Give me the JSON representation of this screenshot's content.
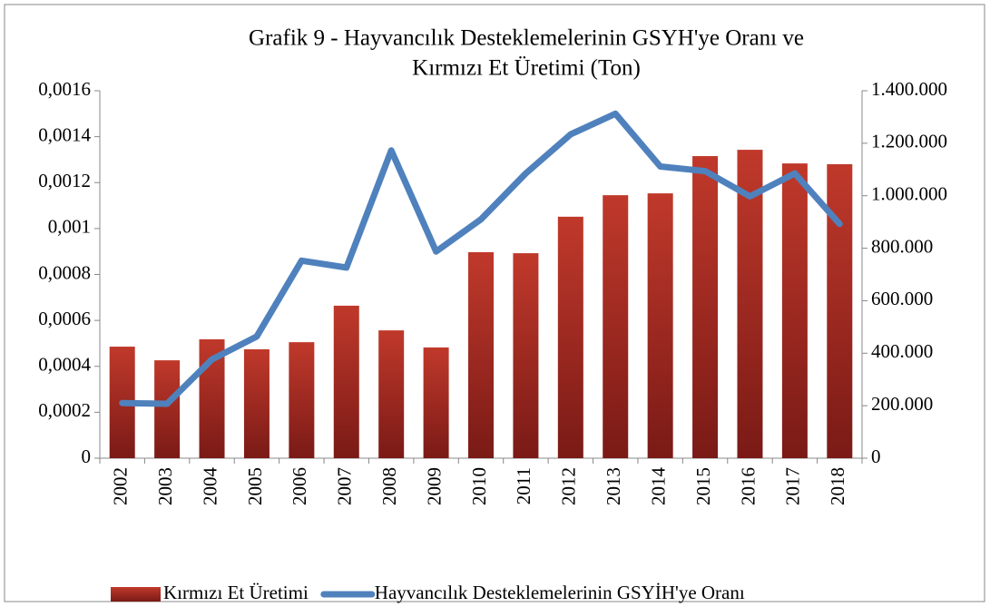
{
  "chart_data": {
    "type": "bar_line",
    "title": [
      "Grafik 9 - Hayvancılık Desteklemelerinin GSYH'ye Oranı ve",
      "Kırmızı Et Üretimi (Ton)"
    ],
    "categories": [
      "2002",
      "2003",
      "2004",
      "2005",
      "2006",
      "2007",
      "2008",
      "2009",
      "2010",
      "2011",
      "2012",
      "2013",
      "2014",
      "2015",
      "2016",
      "2017",
      "2018"
    ],
    "series": [
      {
        "name": "Kırmızı Et Üretimi",
        "type": "bar",
        "axis": "y2",
        "color": "#c0392b",
        "values": [
          425000,
          373000,
          453000,
          415000,
          442000,
          581000,
          487000,
          422000,
          785000,
          781000,
          920000,
          1002000,
          1009000,
          1151000,
          1175000,
          1123000,
          1120000
        ]
      },
      {
        "name": "Hayvancılık Desteklemelerinin GSYİH'ye Oranı",
        "type": "line",
        "axis": "y",
        "color": "#4f81bd",
        "values": [
          0.00024,
          0.000237,
          0.00043,
          0.00053,
          0.00086,
          0.00083,
          0.00134,
          0.0009,
          0.00104,
          0.00124,
          0.00141,
          0.0015,
          0.00127,
          0.00125,
          0.00114,
          0.00124,
          0.00102
        ]
      }
    ],
    "ylim": [
      0,
      0.0016
    ],
    "yticks": [
      0,
      {
        "value": 0.0002,
        "label": "0,0002"
      },
      {
        "value": 0.0004,
        "label": "0,0004"
      },
      {
        "value": 0.0006,
        "label": "0,0006"
      },
      {
        "value": 0.0008,
        "label": "0,0008"
      },
      {
        "value": 0.001,
        "label": "0,001"
      },
      {
        "value": 0.0012,
        "label": "0,0012"
      },
      {
        "value": 0.0014,
        "label": "0,0014"
      },
      {
        "value": 0.0016,
        "label": "0,0016"
      }
    ],
    "y2lim": [
      0,
      1400000
    ],
    "y2ticks": [
      0,
      {
        "value": 200000,
        "label": "200.000"
      },
      {
        "value": 400000,
        "label": "400.000"
      },
      {
        "value": 600000,
        "label": "600.000"
      },
      {
        "value": 800000,
        "label": "800.000"
      },
      {
        "value": 1000000,
        "label": "1.000.000"
      },
      {
        "value": 1200000,
        "label": "1.200.000"
      },
      {
        "value": 1400000,
        "label": "1.400.000"
      }
    ],
    "legend": "bottom"
  }
}
